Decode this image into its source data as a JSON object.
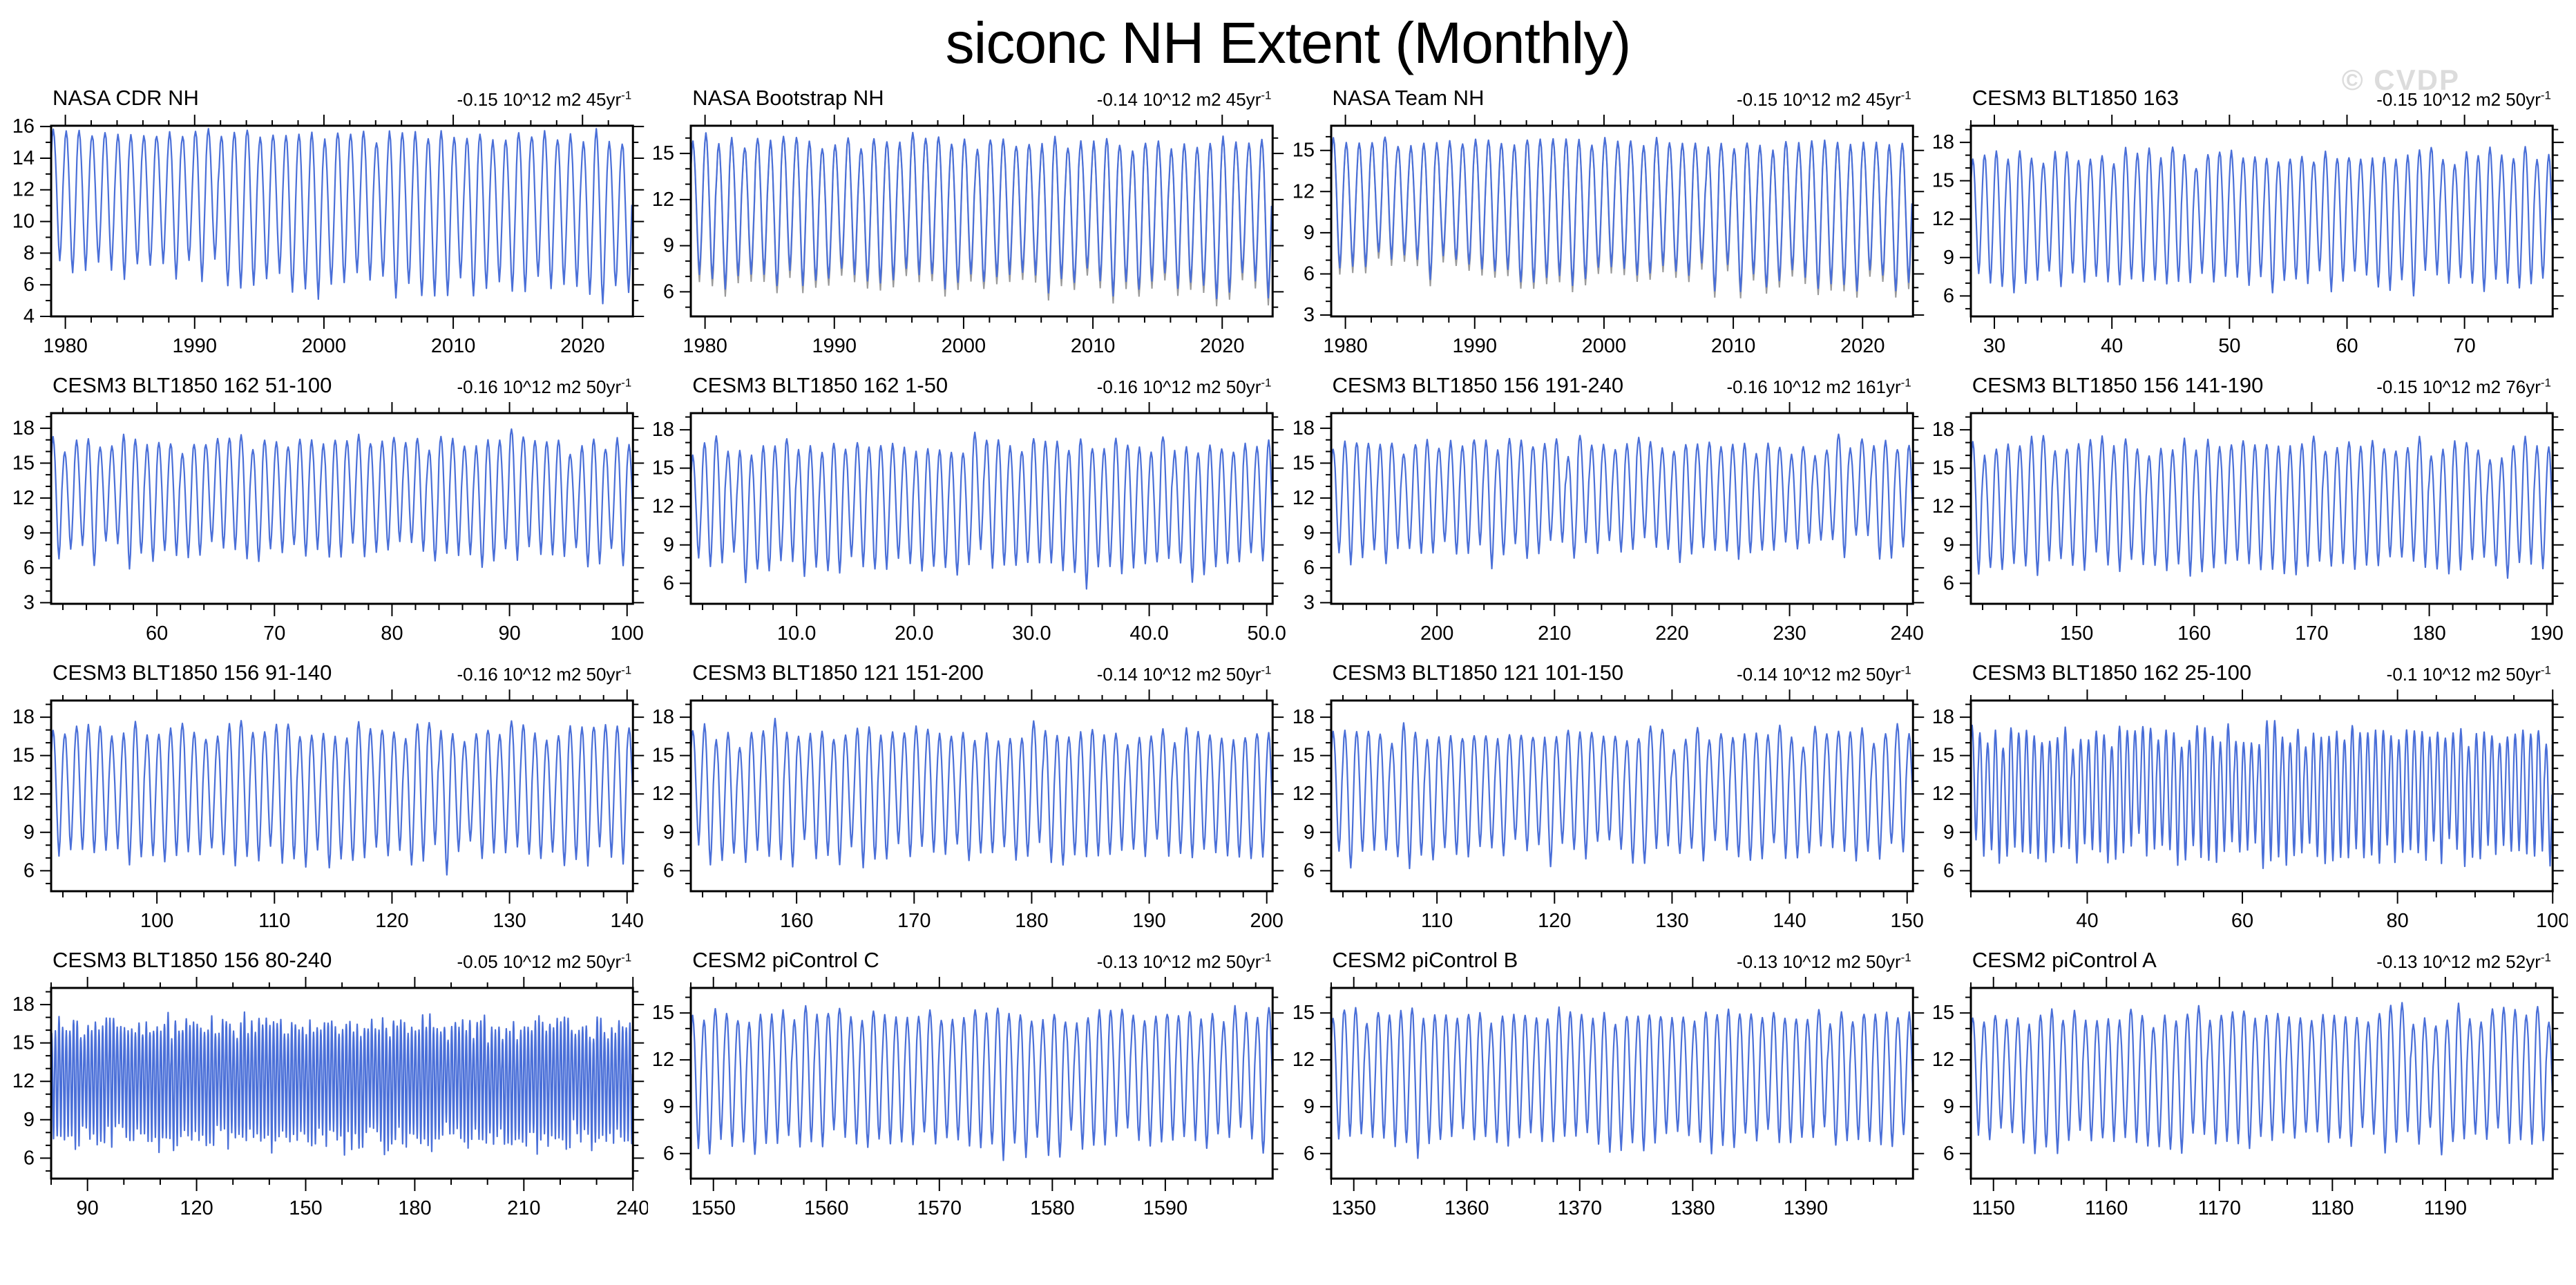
{
  "header": {
    "title": "siconc NH Extent (Monthly)",
    "watermark": "© CVDP"
  },
  "styles": {
    "line_color": "#4a6fd8",
    "gray_color": "#9a9a9a",
    "axis_color": "#000000",
    "watermark_color": "#dcdcdc"
  },
  "chart_data": [
    {
      "type": "line",
      "title": "NASA CDR NH",
      "trend": "-0.15 10^12 m2 45yr",
      "trend_exp": "-1",
      "xlim": [
        1978.9,
        2023.9
      ],
      "ylim": [
        4,
        16.05
      ],
      "x_ticks": [
        1980,
        1990,
        2000,
        2010,
        2020
      ],
      "x_tick_labels": [
        "1980",
        "1990",
        "2000",
        "2010",
        "2020"
      ],
      "x_minor_step": 2,
      "y_ticks": [
        4,
        6,
        8,
        10,
        12,
        14,
        16
      ],
      "y_minor_step": 1,
      "seasonal": {
        "peak_mean": 15.55,
        "peak_sd": 0.25,
        "trough_mean": 6.35,
        "trough_sd": 0.55,
        "peak_trend": -0.35,
        "trough_trend": -1.2
      },
      "gray_companion": false,
      "seed": 11
    },
    {
      "type": "line",
      "title": "NASA Bootstrap NH",
      "trend": "-0.14 10^12 m2 45yr",
      "trend_exp": "-1",
      "xlim": [
        1978.9,
        2023.9
      ],
      "ylim": [
        4.4,
        16.8
      ],
      "x_ticks": [
        1980,
        1990,
        2000,
        2010,
        2020
      ],
      "x_tick_labels": [
        "1980",
        "1990",
        "2000",
        "2010",
        "2020"
      ],
      "x_minor_step": 2,
      "y_ticks": [
        6,
        9,
        12,
        15
      ],
      "y_minor_step": 1,
      "seasonal": {
        "peak_mean": 15.8,
        "peak_sd": 0.25,
        "trough_mean": 6.7,
        "trough_sd": 0.5,
        "peak_trend": -0.3,
        "trough_trend": -1.1
      },
      "gray_companion": true,
      "seed": 22
    },
    {
      "type": "line",
      "title": "NASA Team NH",
      "trend": "-0.15 10^12 m2 45yr",
      "trend_exp": "-1",
      "xlim": [
        1978.9,
        2023.9
      ],
      "ylim": [
        2.9,
        16.8
      ],
      "x_ticks": [
        1980,
        1990,
        2000,
        2010,
        2020
      ],
      "x_tick_labels": [
        "1980",
        "1990",
        "2000",
        "2010",
        "2020"
      ],
      "x_minor_step": 2,
      "y_ticks": [
        3,
        6,
        9,
        12,
        15
      ],
      "y_minor_step": 1,
      "seasonal": {
        "peak_mean": 15.5,
        "peak_sd": 0.25,
        "trough_mean": 6.0,
        "trough_sd": 0.55,
        "peak_trend": -0.3,
        "trough_trend": -1.2
      },
      "gray_companion": true,
      "seed": 33
    },
    {
      "type": "line",
      "title": "CESM3 BLT1850 163",
      "trend": "-0.15 10^12 m2 50yr",
      "trend_exp": "-1",
      "xlim": [
        28,
        77.5
      ],
      "ylim": [
        4.4,
        19.3
      ],
      "x_ticks": [
        30,
        40,
        50,
        60,
        70
      ],
      "x_tick_labels": [
        "30",
        "40",
        "50",
        "60",
        "70"
      ],
      "x_minor_step": 2,
      "y_ticks": [
        6,
        9,
        12,
        15,
        18
      ],
      "y_minor_step": 1,
      "seasonal": {
        "peak_mean": 17.0,
        "peak_sd": 0.4,
        "trough_mean": 7.2,
        "trough_sd": 0.55,
        "peak_trend": 0,
        "trough_trend": 0
      },
      "gray_companion": false,
      "seed": 44
    },
    {
      "type": "line",
      "title": "CESM3 BLT1850 162 51-100",
      "trend": "-0.16 10^12 m2 50yr",
      "trend_exp": "-1",
      "xlim": [
        51,
        100.5
      ],
      "ylim": [
        2.9,
        19.3
      ],
      "x_ticks": [
        60,
        70,
        80,
        90,
        100
      ],
      "x_tick_labels": [
        "60",
        "70",
        "80",
        "90",
        "100"
      ],
      "x_minor_step": 2,
      "y_ticks": [
        3,
        6,
        9,
        12,
        15,
        18
      ],
      "y_minor_step": 1,
      "seasonal": {
        "peak_mean": 16.8,
        "peak_sd": 0.45,
        "trough_mean": 7.3,
        "trough_sd": 0.6,
        "peak_trend": 0,
        "trough_trend": 0
      },
      "gray_companion": false,
      "seed": 55
    },
    {
      "type": "line",
      "title": "CESM3 BLT1850 162 1-50",
      "trend": "-0.16 10^12 m2 50yr",
      "trend_exp": "-1",
      "xlim": [
        1,
        50.5
      ],
      "ylim": [
        4.4,
        19.3
      ],
      "x_ticks": [
        10,
        20,
        30,
        40,
        50
      ],
      "x_tick_labels": [
        "10.0",
        "20.0",
        "30.0",
        "40.0",
        "50.0"
      ],
      "x_minor_step": 2,
      "y_ticks": [
        6,
        9,
        12,
        15,
        18
      ],
      "y_minor_step": 1,
      "seasonal": {
        "peak_mean": 16.9,
        "peak_sd": 0.4,
        "trough_mean": 7.2,
        "trough_sd": 0.6,
        "peak_trend": 0,
        "trough_trend": 0
      },
      "gray_companion": false,
      "seed": 66
    },
    {
      "type": "line",
      "title": "CESM3 BLT1850 156 191-240",
      "trend": "-0.16 10^12 m2 161yr",
      "trend_exp": "-1",
      "xlim": [
        191,
        240.5
      ],
      "ylim": [
        2.9,
        19.3
      ],
      "x_ticks": [
        200,
        210,
        220,
        230,
        240
      ],
      "x_tick_labels": [
        "200",
        "210",
        "220",
        "230",
        "240"
      ],
      "x_minor_step": 2,
      "y_ticks": [
        3,
        6,
        9,
        12,
        15,
        18
      ],
      "y_minor_step": 1,
      "seasonal": {
        "peak_mean": 16.6,
        "peak_sd": 0.45,
        "trough_mean": 7.4,
        "trough_sd": 0.6,
        "peak_trend": 0,
        "trough_trend": 0
      },
      "gray_companion": false,
      "seed": 77
    },
    {
      "type": "line",
      "title": "CESM3 BLT1850 156 141-190",
      "trend": "-0.15 10^12 m2 76yr",
      "trend_exp": "-1",
      "xlim": [
        141,
        190.5
      ],
      "ylim": [
        4.4,
        19.3
      ],
      "x_ticks": [
        150,
        160,
        170,
        180,
        190
      ],
      "x_tick_labels": [
        "150",
        "160",
        "170",
        "180",
        "190"
      ],
      "x_minor_step": 2,
      "y_ticks": [
        6,
        9,
        12,
        15,
        18
      ],
      "y_minor_step": 1,
      "seasonal": {
        "peak_mean": 16.8,
        "peak_sd": 0.4,
        "trough_mean": 7.3,
        "trough_sd": 0.55,
        "peak_trend": 0,
        "trough_trend": 0
      },
      "gray_companion": false,
      "seed": 88
    },
    {
      "type": "line",
      "title": "CESM3 BLT1850 156 91-140",
      "trend": "-0.16 10^12 m2 50yr",
      "trend_exp": "-1",
      "xlim": [
        91,
        140.5
      ],
      "ylim": [
        4.4,
        19.3
      ],
      "x_ticks": [
        100,
        110,
        120,
        130,
        140
      ],
      "x_tick_labels": [
        "100",
        "110",
        "120",
        "130",
        "140"
      ],
      "x_minor_step": 2,
      "y_ticks": [
        6,
        9,
        12,
        15,
        18
      ],
      "y_minor_step": 1,
      "seasonal": {
        "peak_mean": 16.9,
        "peak_sd": 0.45,
        "trough_mean": 7.2,
        "trough_sd": 0.6,
        "peak_trend": 0,
        "trough_trend": 0
      },
      "gray_companion": false,
      "seed": 99
    },
    {
      "type": "line",
      "title": "CESM3 BLT1850 121 151-200",
      "trend": "-0.14 10^12 m2 50yr",
      "trend_exp": "-1",
      "xlim": [
        151,
        200.5
      ],
      "ylim": [
        4.4,
        19.3
      ],
      "x_ticks": [
        160,
        170,
        180,
        190,
        200
      ],
      "x_tick_labels": [
        "160",
        "170",
        "180",
        "190",
        "200"
      ],
      "x_minor_step": 2,
      "y_ticks": [
        6,
        9,
        12,
        15,
        18
      ],
      "y_minor_step": 1,
      "seasonal": {
        "peak_mean": 16.7,
        "peak_sd": 0.4,
        "trough_mean": 7.3,
        "trough_sd": 0.55,
        "peak_trend": 0,
        "trough_trend": 0
      },
      "gray_companion": false,
      "seed": 111
    },
    {
      "type": "line",
      "title": "CESM3 BLT1850 121 101-150",
      "trend": "-0.14 10^12 m2 50yr",
      "trend_exp": "-1",
      "xlim": [
        101,
        150.5
      ],
      "ylim": [
        4.4,
        19.3
      ],
      "x_ticks": [
        110,
        120,
        130,
        140,
        150
      ],
      "x_tick_labels": [
        "110",
        "120",
        "130",
        "140",
        "150"
      ],
      "x_minor_step": 2,
      "y_ticks": [
        6,
        9,
        12,
        15,
        18
      ],
      "y_minor_step": 1,
      "seasonal": {
        "peak_mean": 16.6,
        "peak_sd": 0.45,
        "trough_mean": 7.3,
        "trough_sd": 0.6,
        "peak_trend": 0,
        "trough_trend": 0
      },
      "gray_companion": false,
      "seed": 122
    },
    {
      "type": "line",
      "title": "CESM3 BLT1850 162 25-100",
      "trend": "-0.1 10^12 m2 50yr",
      "trend_exp": "-1",
      "xlim": [
        25,
        100
      ],
      "ylim": [
        4.4,
        19.3
      ],
      "x_ticks": [
        40,
        60,
        80,
        100
      ],
      "x_tick_labels": [
        "40",
        "60",
        "80",
        "100"
      ],
      "x_minor_step": 5,
      "y_ticks": [
        6,
        9,
        12,
        15,
        18
      ],
      "y_minor_step": 1,
      "seasonal": {
        "peak_mean": 16.6,
        "peak_sd": 0.5,
        "trough_mean": 7.4,
        "trough_sd": 0.6,
        "peak_trend": 0,
        "trough_trend": 0
      },
      "gray_companion": false,
      "seed": 133
    },
    {
      "type": "line",
      "title": "CESM3 BLT1850 156 80-240",
      "trend": "-0.05 10^12 m2 50yr",
      "trend_exp": "-1",
      "xlim": [
        80,
        240
      ],
      "ylim": [
        4.4,
        19.3
      ],
      "x_ticks": [
        90,
        120,
        150,
        180,
        210,
        240
      ],
      "x_tick_labels": [
        "90",
        "120",
        "150",
        "180",
        "210",
        "240"
      ],
      "x_minor_step": 10,
      "y_ticks": [
        6,
        9,
        12,
        15,
        18
      ],
      "y_minor_step": 1,
      "seasonal": {
        "peak_mean": 16.2,
        "peak_sd": 0.5,
        "trough_mean": 7.6,
        "trough_sd": 0.55,
        "peak_trend": 0,
        "trough_trend": 0
      },
      "gray_companion": false,
      "seed": 144
    },
    {
      "type": "line",
      "title": "CESM2 piControl C",
      "trend": "-0.13 10^12 m2 50yr",
      "trend_exp": "-1",
      "xlim": [
        1548,
        1599.5
      ],
      "ylim": [
        4.4,
        16.6
      ],
      "x_ticks": [
        1550,
        1560,
        1570,
        1580,
        1590
      ],
      "x_tick_labels": [
        "1550",
        "1560",
        "1570",
        "1580",
        "1590"
      ],
      "x_minor_step": 2,
      "y_ticks": [
        6,
        9,
        12,
        15
      ],
      "y_minor_step": 1,
      "seasonal": {
        "peak_mean": 14.9,
        "peak_sd": 0.3,
        "trough_mean": 6.7,
        "trough_sd": 0.45,
        "peak_trend": 0,
        "trough_trend": 0
      },
      "gray_companion": false,
      "seed": 155
    },
    {
      "type": "line",
      "title": "CESM2 piControl B",
      "trend": "-0.13 10^12 m2 50yr",
      "trend_exp": "-1",
      "xlim": [
        1348,
        1399.5
      ],
      "ylim": [
        4.4,
        16.6
      ],
      "x_ticks": [
        1350,
        1360,
        1370,
        1380,
        1390
      ],
      "x_tick_labels": [
        "1350",
        "1360",
        "1370",
        "1380",
        "1390"
      ],
      "x_minor_step": 2,
      "y_ticks": [
        6,
        9,
        12,
        15
      ],
      "y_minor_step": 1,
      "seasonal": {
        "peak_mean": 14.9,
        "peak_sd": 0.3,
        "trough_mean": 6.8,
        "trough_sd": 0.45,
        "peak_trend": 0,
        "trough_trend": 0
      },
      "gray_companion": false,
      "seed": 166
    },
    {
      "type": "line",
      "title": "CESM2 piControl A",
      "trend": "-0.13 10^12 m2 52yr",
      "trend_exp": "-1",
      "xlim": [
        1148,
        1199.5
      ],
      "ylim": [
        4.4,
        16.6
      ],
      "x_ticks": [
        1150,
        1160,
        1170,
        1180,
        1190
      ],
      "x_tick_labels": [
        "1150",
        "1160",
        "1170",
        "1180",
        "1190"
      ],
      "x_minor_step": 2,
      "y_ticks": [
        6,
        9,
        12,
        15
      ],
      "y_minor_step": 1,
      "seasonal": {
        "peak_mean": 14.9,
        "peak_sd": 0.3,
        "trough_mean": 6.8,
        "trough_sd": 0.45,
        "peak_trend": 0,
        "trough_trend": 0
      },
      "gray_companion": false,
      "seed": 177
    }
  ]
}
